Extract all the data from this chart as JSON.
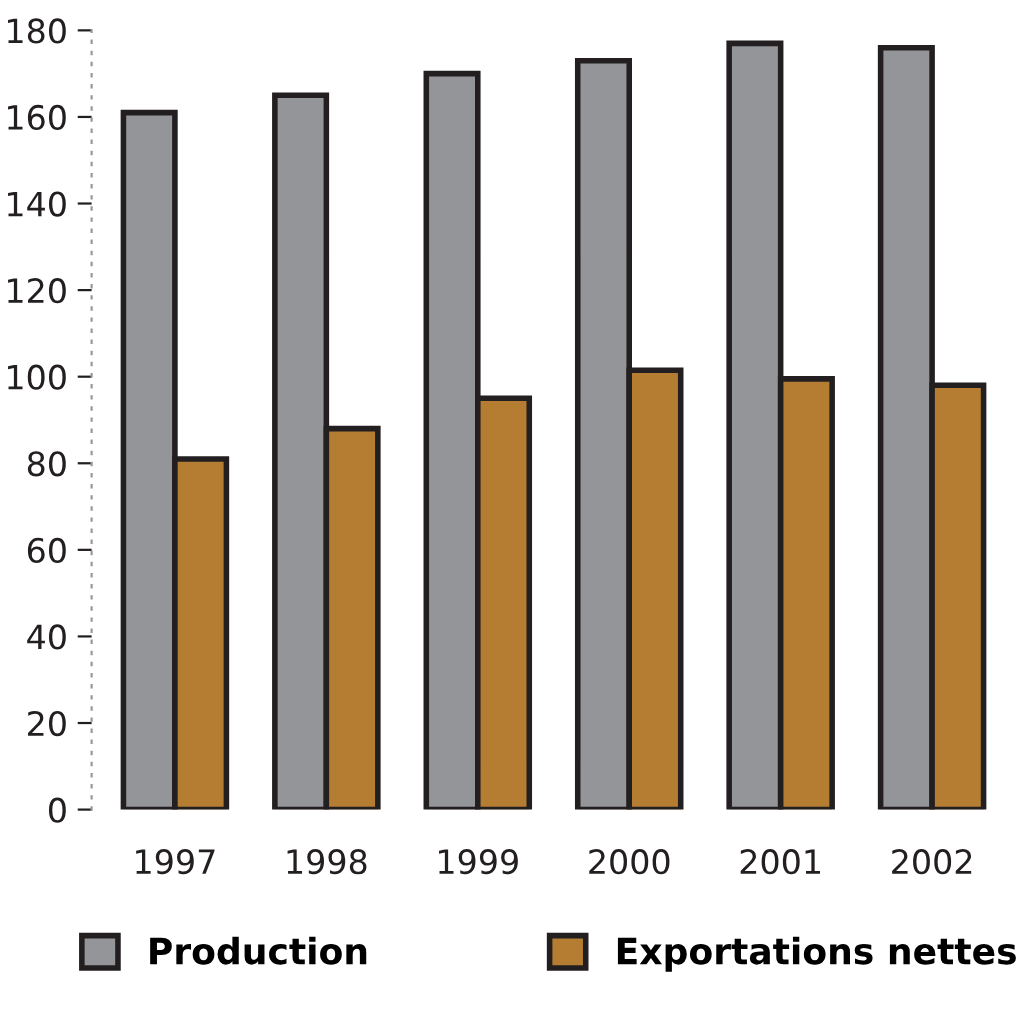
{
  "chart_data": {
    "type": "bar",
    "categories": [
      "1997",
      "1998",
      "1999",
      "2000",
      "2001",
      "2002"
    ],
    "series": [
      {
        "name": "Production",
        "color": "#939598",
        "values": [
          161,
          165,
          170,
          173,
          177,
          176
        ]
      },
      {
        "name": "Exportations nettes",
        "color": "#b57d32",
        "values": [
          81,
          88,
          95,
          101.5,
          99.5,
          98
        ]
      }
    ],
    "ylim": [
      0,
      180
    ],
    "yticks": [
      0,
      20,
      40,
      60,
      80,
      100,
      120,
      140,
      160,
      180
    ],
    "grid": false,
    "legend": "bottom"
  }
}
